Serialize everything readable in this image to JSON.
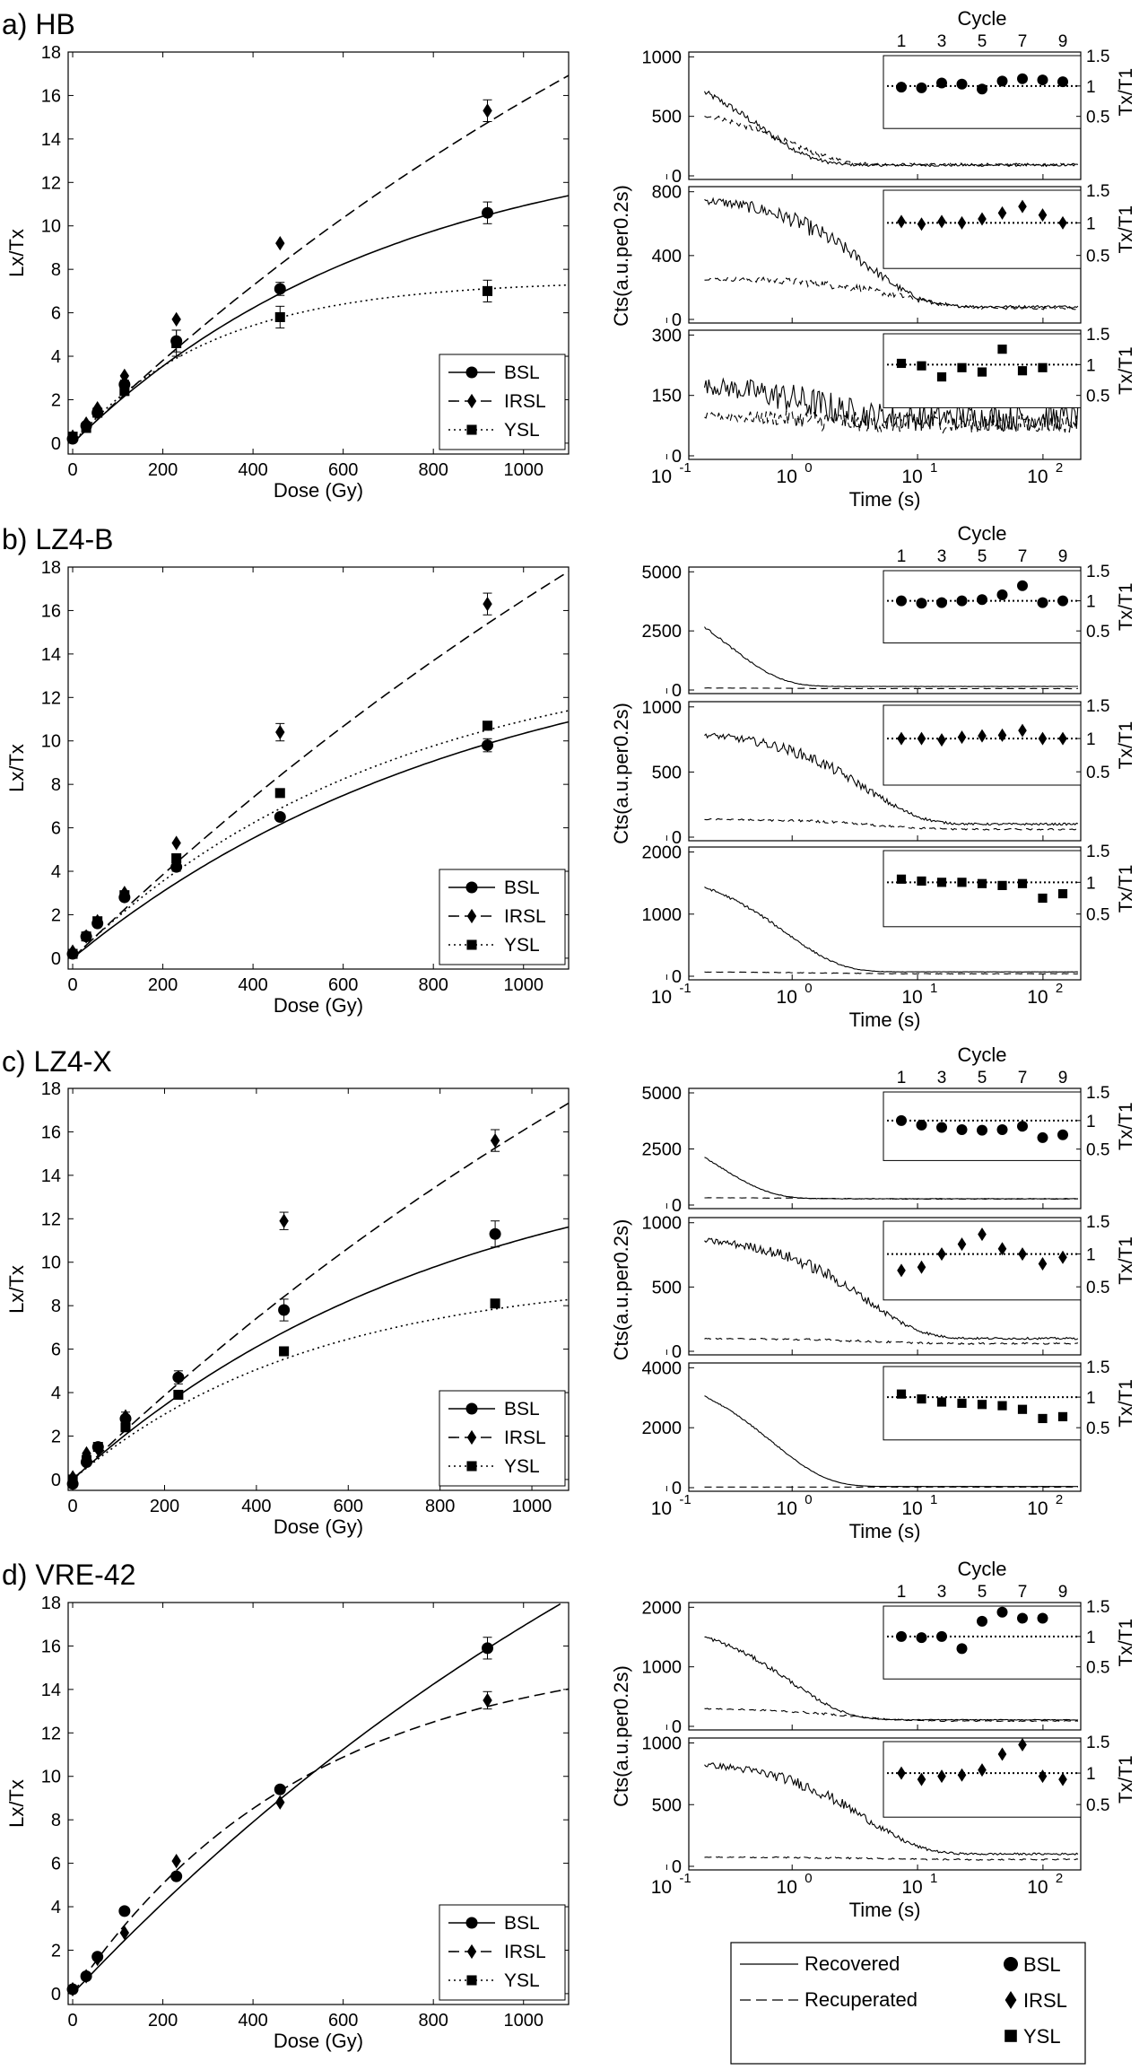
{
  "legend_styles": {
    "BSL": {
      "marker": "circle",
      "dash": "solid"
    },
    "IRSL": {
      "marker": "diamond",
      "dash": "dashed"
    },
    "YSL": {
      "marker": "square",
      "dash": "dotted"
    }
  },
  "bottom_legend": {
    "lines": [
      "Recovered",
      "Recuperated"
    ],
    "markers": [
      "BSL",
      "IRSL",
      "YSL"
    ]
  },
  "chart_data": [
    {
      "panel": "a) HB",
      "type": "scatter",
      "xlabel": "Dose (Gy)",
      "ylabel": "Lx/Tx",
      "xlim": [
        -10,
        1100
      ],
      "ylim": [
        -0.5,
        18
      ],
      "xticks": [
        0,
        200,
        400,
        600,
        800,
        1000
      ],
      "yticks": [
        0,
        2,
        4,
        6,
        8,
        10,
        12,
        14,
        16,
        18
      ],
      "legend_position": "bottom-right",
      "series": [
        {
          "name": "BSL",
          "x": [
            0,
            30,
            55,
            115,
            230,
            460,
            920
          ],
          "y": [
            0.2,
            0.8,
            1.4,
            2.7,
            4.7,
            7.1,
            10.6
          ],
          "err": [
            0,
            0,
            0,
            0.2,
            0.5,
            0.3,
            0.5
          ],
          "fit_max": 14.5,
          "fit_k": 0.0014
        },
        {
          "name": "IRSL",
          "x": [
            0,
            30,
            55,
            115,
            230,
            460,
            920
          ],
          "y": [
            0.3,
            0.9,
            1.6,
            3.1,
            5.7,
            9.2,
            15.3
          ],
          "err": [
            0,
            0,
            0,
            0,
            0,
            0,
            0.5
          ],
          "fit_max": 40,
          "fit_k": 0.0005
        },
        {
          "name": "YSL",
          "x": [
            0,
            30,
            55,
            115,
            230,
            460,
            920
          ],
          "y": [
            0.3,
            0.7,
            1.4,
            2.4,
            4.6,
            5.8,
            7.0
          ],
          "err": [
            0,
            0,
            0,
            0.2,
            0.6,
            0.5,
            0.5
          ],
          "fit_max": 7.5,
          "fit_k": 0.0032
        }
      ]
    },
    {
      "panel": "b) LZ4-B",
      "type": "scatter",
      "xlabel": "Dose (Gy)",
      "ylabel": "Lx/Tx",
      "xlim": [
        -10,
        1100
      ],
      "ylim": [
        -0.5,
        18
      ],
      "xticks": [
        0,
        200,
        400,
        600,
        800,
        1000
      ],
      "yticks": [
        0,
        2,
        4,
        6,
        8,
        10,
        12,
        14,
        16,
        18
      ],
      "legend_position": "bottom-right",
      "series": [
        {
          "name": "BSL",
          "x": [
            0,
            30,
            55,
            115,
            230,
            460,
            920
          ],
          "y": [
            0.2,
            1.0,
            1.6,
            2.8,
            4.2,
            6.5,
            9.8
          ],
          "err": [
            0,
            0,
            0,
            0,
            0.2,
            0,
            0.3
          ],
          "fit_max": 15.5,
          "fit_k": 0.0011
        },
        {
          "name": "IRSL",
          "x": [
            0,
            30,
            55,
            115,
            230,
            460,
            920
          ],
          "y": [
            0.3,
            1.0,
            1.7,
            3.0,
            5.3,
            10.4,
            16.3
          ],
          "err": [
            0,
            0,
            0,
            0,
            0,
            0.4,
            0.5
          ],
          "fit_max": 50,
          "fit_k": 0.0004
        },
        {
          "name": "YSL",
          "x": [
            0,
            30,
            55,
            115,
            230,
            460,
            920
          ],
          "y": [
            0.2,
            1.0,
            1.7,
            2.9,
            4.6,
            7.6,
            10.7
          ],
          "err": [
            0,
            0,
            0,
            0,
            0,
            0,
            0.2
          ],
          "fit_max": 14.5,
          "fit_k": 0.0014
        }
      ]
    },
    {
      "panel": "c) LZ4-X",
      "type": "scatter",
      "xlabel": "Dose (Gy)",
      "ylabel": "Lx/Tx",
      "xlim": [
        -10,
        1080
      ],
      "ylim": [
        -0.5,
        18
      ],
      "xticks": [
        0,
        200,
        400,
        600,
        800,
        1000
      ],
      "yticks": [
        0,
        2,
        4,
        6,
        8,
        10,
        12,
        14,
        16,
        18
      ],
      "legend_position": "bottom-right",
      "series": [
        {
          "name": "BSL",
          "x": [
            0,
            30,
            55,
            115,
            230,
            460,
            920
          ],
          "y": [
            -0.2,
            0.8,
            1.5,
            2.8,
            4.7,
            7.8,
            11.3
          ],
          "err": [
            0,
            0,
            0,
            0.3,
            0.3,
            0.5,
            0.6
          ],
          "fit_max": 16,
          "fit_k": 0.0012
        },
        {
          "name": "IRSL",
          "x": [
            0,
            30,
            55,
            115,
            230,
            460,
            920
          ],
          "y": [
            0.1,
            1.2,
            1.4,
            2.9,
            4.7,
            11.9,
            15.6
          ],
          "err": [
            0,
            0,
            0,
            0,
            0,
            0.4,
            0.5
          ],
          "fit_max": 45,
          "fit_k": 0.00045
        },
        {
          "name": "YSL",
          "x": [
            0,
            30,
            55,
            115,
            230,
            460,
            920
          ],
          "y": [
            0.0,
            0.9,
            1.5,
            2.4,
            3.9,
            5.9,
            8.1
          ],
          "err": [
            0,
            0,
            0,
            0,
            0,
            0,
            0
          ],
          "fit_max": 9.5,
          "fit_k": 0.0019
        }
      ]
    },
    {
      "panel": "d) VRE-42",
      "type": "scatter",
      "xlabel": "Dose (Gy)",
      "ylabel": "Lx/Tx",
      "xlim": [
        -10,
        1100
      ],
      "ylim": [
        -0.5,
        18
      ],
      "xticks": [
        0,
        200,
        400,
        600,
        800,
        1000
      ],
      "yticks": [
        0,
        2,
        4,
        6,
        8,
        10,
        12,
        14,
        16,
        18
      ],
      "legend_position": "bottom-right",
      "series": [
        {
          "name": "BSL",
          "x": [
            0,
            30,
            55,
            115,
            230,
            460,
            920
          ],
          "y": [
            0.2,
            0.8,
            1.7,
            3.8,
            5.4,
            9.4,
            15.9
          ],
          "err": [
            0,
            0,
            0,
            0,
            0,
            0,
            0.5
          ],
          "fit_max": 40,
          "fit_k": 0.00055
        },
        {
          "name": "IRSL",
          "x": [
            0,
            30,
            55,
            115,
            230,
            460,
            920
          ],
          "y": [
            0.2,
            0.8,
            1.6,
            2.8,
            6.1,
            8.8,
            13.5
          ],
          "err": [
            0,
            0,
            0,
            0,
            0,
            0,
            0.4
          ],
          "fit_max": 16,
          "fit_k": 0.0019
        },
        {
          "name": "YSL",
          "x": [],
          "y": [],
          "err": [],
          "fit_max": 0,
          "fit_k": 0
        }
      ]
    }
  ],
  "decay_data": [
    {
      "group": "HB",
      "type": "line",
      "xscale": "log",
      "xlabel": "Time (s)",
      "ylabel": "Cts(a.u.per0.2s)",
      "inset_title": "Cycle",
      "inset_ylabel": "Tx/T1",
      "inset_xticks": [
        "1",
        "3",
        "5",
        "7",
        "9"
      ],
      "inset_yticks": [
        "0.5",
        "1",
        "1.5"
      ],
      "xticks": [
        "10",
        "10",
        "10",
        "10"
      ],
      "xtick_exp": [
        "-1",
        "0",
        "1",
        "2"
      ],
      "panels": [
        {
          "signal": "BSL",
          "ylim": [
            0,
            1000
          ],
          "yticks": [
            "0",
            "500",
            "1000"
          ],
          "recovered": {
            "A": 880,
            "tau": 0.55,
            "c": 90,
            "noise": 0.12
          },
          "recuperated": {
            "A": 520,
            "tau": 0.9,
            "c": 95,
            "noise": 0.12
          },
          "tx_t1": [
            0.98,
            0.97,
            1.05,
            1.03,
            0.95,
            1.08,
            1.12,
            1.1,
            1.07
          ]
        },
        {
          "signal": "IRSL",
          "ylim": [
            0,
            800
          ],
          "yticks": [
            "0",
            "400",
            "800"
          ],
          "recovered": {
            "A": 700,
            "tau": 4.0,
            "c": 80,
            "noise": 0.1
          },
          "recuperated": {
            "A": 190,
            "tau": 8.0,
            "c": 70,
            "noise": 0.12
          },
          "tx_t1": [
            1.02,
            0.98,
            1.02,
            1.0,
            1.06,
            1.15,
            1.25,
            1.12,
            1.0
          ]
        },
        {
          "signal": "YSL",
          "ylim": [
            0,
            300
          ],
          "yticks": [
            "0",
            "150",
            "300"
          ],
          "recovered": {
            "A": 90,
            "tau": 1.5,
            "c": 95,
            "noise": 0.35
          },
          "recuperated": {
            "A": 20,
            "tau": 2.0,
            "c": 80,
            "noise": 0.3
          },
          "tx_t1": [
            1.02,
            0.98,
            0.8,
            0.95,
            0.88,
            1.25,
            0.9,
            0.95
          ]
        }
      ]
    },
    {
      "group": "LZ4-B",
      "type": "line",
      "xscale": "log",
      "xlabel": "Time (s)",
      "ylabel": "Cts(a.u.per0.2s)",
      "inset_title": "Cycle",
      "inset_ylabel": "Tx/T1",
      "inset_xticks": [
        "1",
        "3",
        "5",
        "7",
        "9"
      ],
      "inset_yticks": [
        "0.5",
        "1",
        "1.5"
      ],
      "xticks": [
        "10",
        "10",
        "10",
        "10"
      ],
      "xtick_exp": [
        "-1",
        "0",
        "1",
        "2"
      ],
      "panels": [
        {
          "signal": "BSL",
          "ylim": [
            0,
            5000
          ],
          "yticks": [
            "0",
            "2500",
            "5000"
          ],
          "recovered": {
            "A": 4900,
            "tau": 0.3,
            "c": 150,
            "noise": 0.05
          },
          "recuperated": {
            "A": 30,
            "tau": 1.0,
            "c": 60,
            "noise": 0.1
          },
          "tx_t1": [
            1.0,
            0.96,
            0.97,
            1.0,
            1.02,
            1.1,
            1.25,
            0.97,
            1.0
          ]
        },
        {
          "signal": "IRSL",
          "ylim": [
            0,
            1000
          ],
          "yticks": [
            "0",
            "500",
            "1000"
          ],
          "recovered": {
            "A": 720,
            "tau": 4.0,
            "c": 100,
            "noise": 0.08
          },
          "recuperated": {
            "A": 80,
            "tau": 5.0,
            "c": 60,
            "noise": 0.1
          },
          "tx_t1": [
            1.0,
            1.0,
            0.98,
            1.02,
            1.04,
            1.05,
            1.12,
            1.0,
            1.0
          ]
        },
        {
          "signal": "YSL",
          "ylim": [
            0,
            2000
          ],
          "yticks": [
            "0",
            "1000",
            "2000"
          ],
          "recovered": {
            "A": 1700,
            "tau": 0.9,
            "c": 70,
            "noise": 0.04
          },
          "recuperated": {
            "A": 30,
            "tau": 2.0,
            "c": 40,
            "noise": 0.1
          },
          "tx_t1": [
            1.05,
            1.02,
            1.0,
            1.0,
            0.98,
            0.95,
            0.98,
            0.75,
            0.82
          ]
        }
      ]
    },
    {
      "group": "LZ4-X",
      "type": "line",
      "xscale": "log",
      "xlabel": "Time (s)",
      "ylabel": "Cts(a.u.per0.2s)",
      "inset_title": "Cycle",
      "inset_ylabel": "Tx/T1",
      "inset_xticks": [
        "1",
        "3",
        "5",
        "7",
        "9"
      ],
      "inset_yticks": [
        "0.5",
        "1",
        "1.5"
      ],
      "xticks": [
        "10",
        "10",
        "10",
        "10"
      ],
      "xtick_exp": [
        "-1",
        "0",
        "1",
        "2"
      ],
      "panels": [
        {
          "signal": "BSL",
          "ylim": [
            0,
            5000
          ],
          "yticks": [
            "0",
            "2500",
            "5000"
          ],
          "recovered": {
            "A": 4100,
            "tau": 0.25,
            "c": 280,
            "noise": 0.04
          },
          "recuperated": {
            "A": 60,
            "tau": 2.0,
            "c": 270,
            "noise": 0.04
          },
          "tx_t1": [
            1.0,
            0.92,
            0.88,
            0.84,
            0.83,
            0.84,
            0.9,
            0.7,
            0.75
          ]
        },
        {
          "signal": "IRSL",
          "ylim": [
            0,
            1000
          ],
          "yticks": [
            "0",
            "500",
            "1000"
          ],
          "recovered": {
            "A": 800,
            "tau": 4.0,
            "c": 100,
            "noise": 0.08
          },
          "recuperated": {
            "A": 40,
            "tau": 5.0,
            "c": 60,
            "noise": 0.1
          },
          "tx_t1": [
            0.75,
            0.8,
            1.0,
            1.15,
            1.3,
            1.08,
            1.0,
            0.85,
            0.95
          ]
        },
        {
          "signal": "YSL",
          "ylim": [
            0,
            4000
          ],
          "yticks": [
            "0",
            "2000",
            "4000"
          ],
          "recovered": {
            "A": 4000,
            "tau": 0.7,
            "c": 40,
            "noise": 0.02
          },
          "recuperated": {
            "A": 0,
            "tau": 1.0,
            "c": 20,
            "noise": 0.05
          },
          "tx_t1": [
            1.05,
            0.97,
            0.92,
            0.9,
            0.88,
            0.86,
            0.8,
            0.65,
            0.68
          ]
        }
      ]
    },
    {
      "group": "VRE-42",
      "type": "line",
      "xscale": "log",
      "xlabel": "Time (s)",
      "ylabel": "Cts(a.u.per0.2s)",
      "inset_title": "Cycle",
      "inset_ylabel": "Tx/T1",
      "inset_xticks": [
        "1",
        "3",
        "5",
        "7",
        "9"
      ],
      "inset_yticks": [
        "0.5",
        "1",
        "1.5"
      ],
      "xticks": [
        "10",
        "10",
        "10",
        "10"
      ],
      "xtick_exp": [
        "-1",
        "0",
        "1",
        "2"
      ],
      "panels": [
        {
          "signal": "BSL",
          "ylim": [
            0,
            2000
          ],
          "yticks": [
            "0",
            "1000",
            "2000"
          ],
          "recovered": {
            "A": 1700,
            "tau": 1.0,
            "c": 110,
            "noise": 0.06
          },
          "recuperated": {
            "A": 220,
            "tau": 3.0,
            "c": 90,
            "noise": 0.08
          },
          "tx_t1": [
            1.0,
            0.98,
            1.0,
            0.8,
            1.25,
            1.4,
            1.3,
            1.3
          ]
        },
        {
          "signal": "IRSL",
          "ylim": [
            0,
            1000
          ],
          "yticks": [
            "0",
            "500",
            "1000"
          ],
          "recovered": {
            "A": 760,
            "tau": 4.0,
            "c": 100,
            "noise": 0.08
          },
          "recuperated": {
            "A": 20,
            "tau": 5.0,
            "c": 55,
            "noise": 0.1
          },
          "tx_t1": [
            1.0,
            0.9,
            0.95,
            0.97,
            1.05,
            1.3,
            1.45,
            0.95,
            0.9
          ]
        }
      ]
    }
  ]
}
